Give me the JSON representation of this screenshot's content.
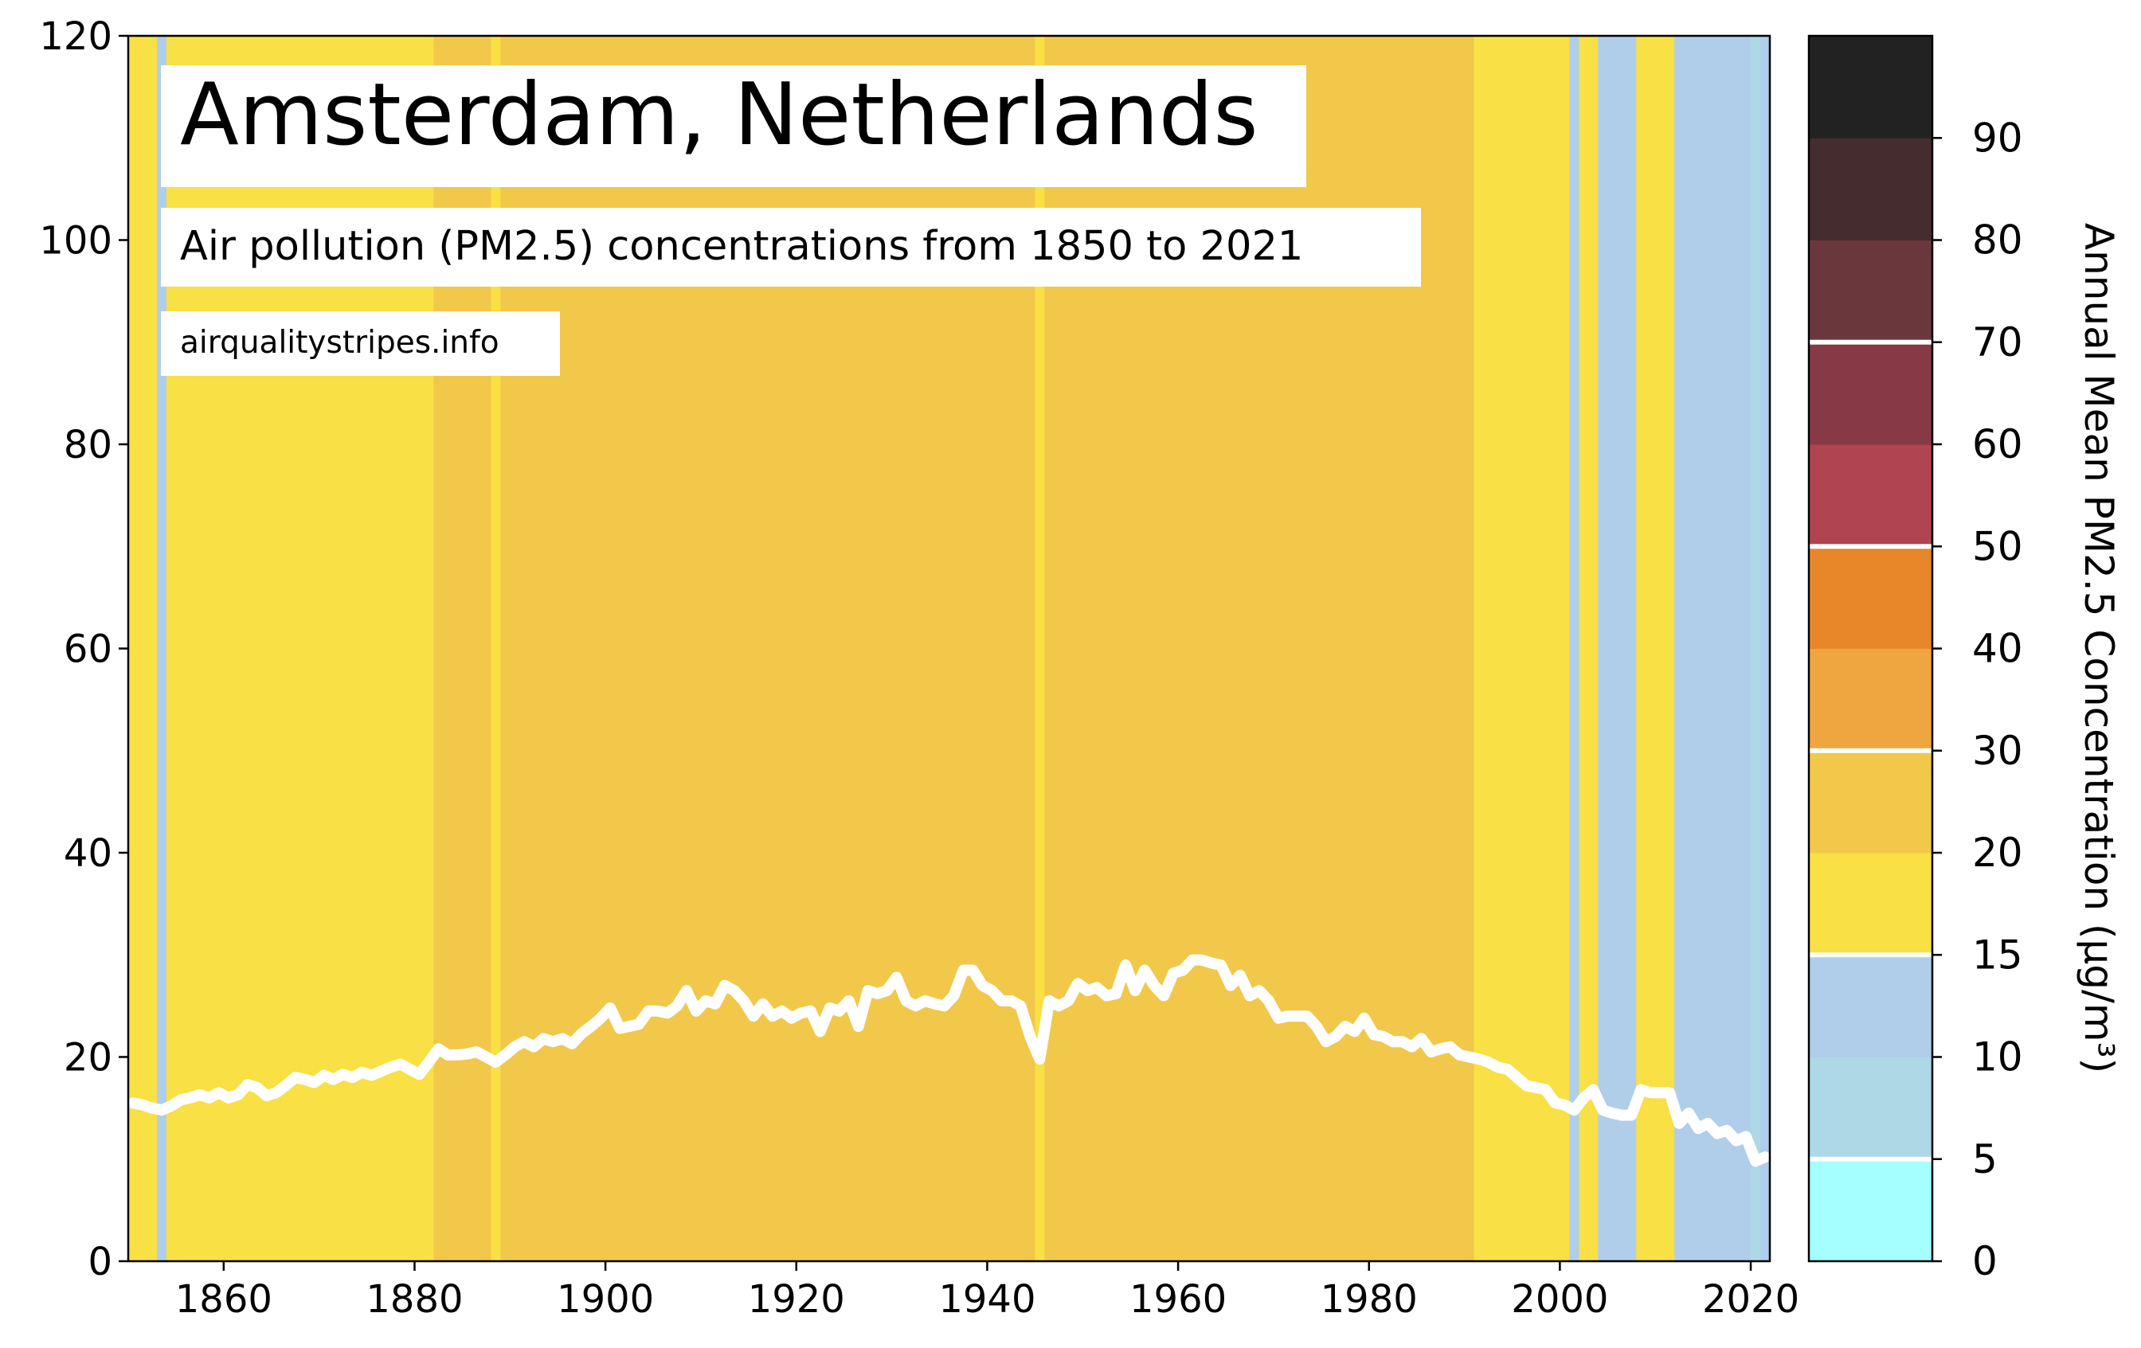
{
  "chart_data": {
    "type": "line",
    "title": "Amsterdam, Netherlands",
    "subtitle": "Air pollution (PM2.5) concentrations from 1850 to 2021",
    "source": "airqualitystripes.info",
    "color": "#ffffff",
    "x": [
      1850,
      1851,
      1852,
      1853,
      1854,
      1855,
      1856,
      1857,
      1858,
      1859,
      1860,
      1861,
      1862,
      1863,
      1864,
      1865,
      1866,
      1867,
      1868,
      1869,
      1870,
      1871,
      1872,
      1873,
      1874,
      1875,
      1876,
      1877,
      1878,
      1879,
      1880,
      1881,
      1882,
      1883,
      1884,
      1885,
      1886,
      1887,
      1888,
      1889,
      1890,
      1891,
      1892,
      1893,
      1894,
      1895,
      1896,
      1897,
      1898,
      1899,
      1900,
      1901,
      1902,
      1903,
      1904,
      1905,
      1906,
      1907,
      1908,
      1909,
      1910,
      1911,
      1912,
      1913,
      1914,
      1915,
      1916,
      1917,
      1918,
      1919,
      1920,
      1921,
      1922,
      1923,
      1924,
      1925,
      1926,
      1927,
      1928,
      1929,
      1930,
      1931,
      1932,
      1933,
      1934,
      1935,
      1936,
      1937,
      1938,
      1939,
      1940,
      1941,
      1942,
      1943,
      1944,
      1945,
      1946,
      1947,
      1948,
      1949,
      1950,
      1951,
      1952,
      1953,
      1954,
      1955,
      1956,
      1957,
      1958,
      1959,
      1960,
      1961,
      1962,
      1963,
      1964,
      1965,
      1966,
      1967,
      1968,
      1969,
      1970,
      1971,
      1972,
      1973,
      1974,
      1975,
      1976,
      1977,
      1978,
      1979,
      1980,
      1981,
      1982,
      1983,
      1984,
      1985,
      1986,
      1987,
      1988,
      1989,
      1990,
      1991,
      1992,
      1993,
      1994,
      1995,
      1996,
      1997,
      1998,
      1999,
      2000,
      2001,
      2002,
      2003,
      2004,
      2005,
      2006,
      2007,
      2008,
      2009,
      2010,
      2011,
      2012,
      2013,
      2014,
      2015,
      2016,
      2017,
      2018,
      2019,
      2020,
      2021
    ],
    "values": [
      15.5,
      15.3,
      15.0,
      14.8,
      15.2,
      15.8,
      16.0,
      16.3,
      16.0,
      16.5,
      16.0,
      16.3,
      17.3,
      17.0,
      16.2,
      16.5,
      17.2,
      18.0,
      17.8,
      17.5,
      18.2,
      17.8,
      18.3,
      18.0,
      18.5,
      18.2,
      18.6,
      19.0,
      19.3,
      18.8,
      18.3,
      19.5,
      20.8,
      20.2,
      20.2,
      20.3,
      20.5,
      20.0,
      19.5,
      20.2,
      21.0,
      21.5,
      21.0,
      21.8,
      21.5,
      21.8,
      21.3,
      22.3,
      23.0,
      23.8,
      24.8,
      22.8,
      23.0,
      23.2,
      24.5,
      24.5,
      24.3,
      25.0,
      26.5,
      24.5,
      25.5,
      25.2,
      27.0,
      26.5,
      25.5,
      24.0,
      25.2,
      24.0,
      24.5,
      23.8,
      24.3,
      24.5,
      22.5,
      24.8,
      24.5,
      25.5,
      23.0,
      26.5,
      26.2,
      26.5,
      27.8,
      25.5,
      25.0,
      25.5,
      25.2,
      25.0,
      26.0,
      28.5,
      28.5,
      27.0,
      26.5,
      25.5,
      25.5,
      25.0,
      22.0,
      19.8,
      25.5,
      25.0,
      25.5,
      27.2,
      26.5,
      26.8,
      26.0,
      26.2,
      29.0,
      26.5,
      28.5,
      27.0,
      26.0,
      28.2,
      28.5,
      29.5,
      29.5,
      29.2,
      29.0,
      27.0,
      28.0,
      26.0,
      26.5,
      25.5,
      23.8,
      24.0,
      24.0,
      24.0,
      23.0,
      21.5,
      22.0,
      23.0,
      22.5,
      23.8,
      22.2,
      22.0,
      21.5,
      21.5,
      21.0,
      21.8,
      20.5,
      20.8,
      21.0,
      20.2,
      20.0,
      19.8,
      19.5,
      19.0,
      18.8,
      18.0,
      17.2,
      17.0,
      16.8,
      15.5,
      15.3,
      14.8,
      16.0,
      16.8,
      14.8,
      14.5,
      14.3,
      14.3,
      16.8,
      16.5,
      16.5,
      16.5,
      13.5,
      14.5,
      13.0,
      13.5,
      12.5,
      12.8,
      11.8,
      12.2,
      9.8,
      10.2
    ],
    "xlim": [
      1850,
      2022
    ],
    "xticks": [
      1860,
      1880,
      1900,
      1920,
      1940,
      1960,
      1980,
      2000,
      2020
    ],
    "ylim": [
      0,
      120
    ],
    "yticks": [
      0,
      20,
      40,
      60,
      80,
      100,
      120
    ],
    "colorbar": {
      "label": "Annual Mean PM2.5 Concentration (µg/m³)",
      "bounds": [
        0,
        5,
        10,
        15,
        20,
        30,
        40,
        50,
        60,
        70,
        80,
        90,
        100
      ],
      "colors": [
        "#a5ffff",
        "#add8e6",
        "#b0cdea",
        "#f8e045",
        "#f1c84a",
        "#f0a640",
        "#e8872a",
        "#b04450",
        "#873a46",
        "#6a383c",
        "#452c2f",
        "#222222"
      ],
      "ticks": [
        0,
        5,
        10,
        15,
        20,
        30,
        40,
        50,
        60,
        70,
        80,
        90
      ],
      "lines": [
        5,
        15,
        30,
        50,
        70
      ],
      "line_color": "#ffffff"
    }
  }
}
